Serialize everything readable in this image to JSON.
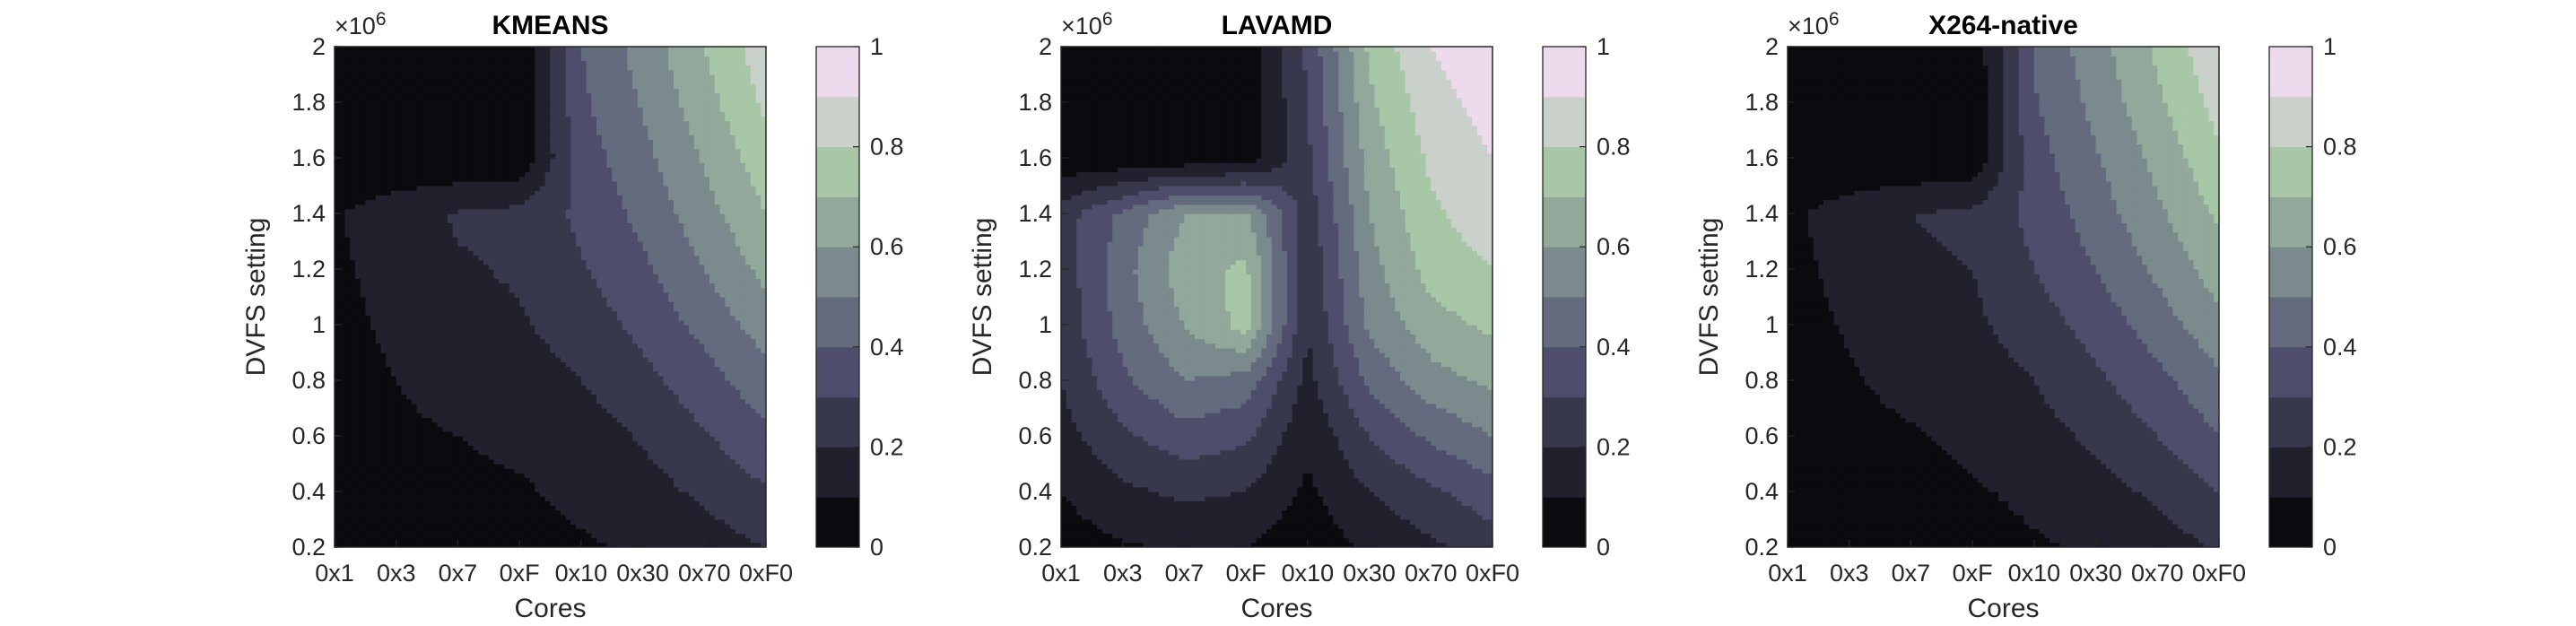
{
  "chart_data": [
    {
      "type": "contour",
      "title": "KMEANS",
      "xlabel": "Cores",
      "ylabel": "DVFS setting",
      "x_categories": [
        "0x1",
        "0x3",
        "0x7",
        "0xF",
        "0x10",
        "0x30",
        "0x70",
        "0xF0"
      ],
      "y": [
        200000,
        400000,
        600000,
        800000,
        1000000,
        1200000,
        1400000,
        1600000,
        1800000,
        2000000
      ],
      "y_tick_labels": [
        "0.2",
        "0.4",
        "0.6",
        "0.8",
        "1",
        "1.2",
        "1.4",
        "1.6",
        "1.8",
        "2"
      ],
      "y_multiplier": "×10",
      "y_multiplier_exp": "6",
      "ylim": [
        200000,
        2000000
      ],
      "colorbar": {
        "range": [
          0,
          1
        ],
        "ticks": [
          "0",
          "0.2",
          "0.4",
          "0.6",
          "0.8",
          "1"
        ]
      },
      "z": [
        [
          0.03,
          0.05,
          0.07,
          0.07,
          0.09,
          0.11,
          0.15,
          0.2
        ],
        [
          0.04,
          0.06,
          0.08,
          0.09,
          0.12,
          0.16,
          0.22,
          0.29
        ],
        [
          0.05,
          0.08,
          0.1,
          0.12,
          0.15,
          0.21,
          0.29,
          0.38
        ],
        [
          0.06,
          0.1,
          0.14,
          0.16,
          0.2,
          0.27,
          0.36,
          0.46
        ],
        [
          0.07,
          0.12,
          0.17,
          0.19,
          0.24,
          0.33,
          0.43,
          0.55
        ],
        [
          0.08,
          0.14,
          0.19,
          0.21,
          0.29,
          0.38,
          0.5,
          0.63
        ],
        [
          0.09,
          0.16,
          0.21,
          0.23,
          0.32,
          0.43,
          0.56,
          0.7
        ],
        [
          0.01,
          0.01,
          0.01,
          0.02,
          0.35,
          0.47,
          0.61,
          0.76
        ],
        [
          0.01,
          0.01,
          0.01,
          0.02,
          0.38,
          0.51,
          0.66,
          0.82
        ],
        [
          0.01,
          0.01,
          0.01,
          0.02,
          0.4,
          0.54,
          0.7,
          0.86
        ]
      ]
    },
    {
      "type": "contour",
      "title": "LAVAMD",
      "xlabel": "Cores",
      "ylabel": "DVFS setting",
      "x_categories": [
        "0x1",
        "0x3",
        "0x7",
        "0xF",
        "0x10",
        "0x30",
        "0x70",
        "0xF0"
      ],
      "y": [
        200000,
        400000,
        600000,
        800000,
        1000000,
        1200000,
        1400000,
        1600000,
        1800000,
        2000000
      ],
      "y_tick_labels": [
        "0.2",
        "0.4",
        "0.6",
        "0.8",
        "1",
        "1.2",
        "1.4",
        "1.6",
        "1.8",
        "2"
      ],
      "y_multiplier": "×10",
      "y_multiplier_exp": "6",
      "ylim": [
        200000,
        2000000
      ],
      "colorbar": {
        "range": [
          0,
          1
        ],
        "ticks": [
          "0",
          "0.2",
          "0.4",
          "0.6",
          "0.8",
          "1"
        ]
      },
      "z": [
        [
          0.05,
          0.09,
          0.11,
          0.1,
          0.03,
          0.12,
          0.18,
          0.25
        ],
        [
          0.1,
          0.18,
          0.22,
          0.2,
          0.08,
          0.2,
          0.28,
          0.36
        ],
        [
          0.16,
          0.28,
          0.36,
          0.32,
          0.12,
          0.3,
          0.42,
          0.5
        ],
        [
          0.2,
          0.38,
          0.5,
          0.46,
          0.17,
          0.42,
          0.56,
          0.62
        ],
        [
          0.23,
          0.44,
          0.6,
          0.74,
          0.2,
          0.52,
          0.66,
          0.72
        ],
        [
          0.24,
          0.46,
          0.66,
          0.72,
          0.22,
          0.56,
          0.74,
          0.8
        ],
        [
          0.25,
          0.42,
          0.6,
          0.62,
          0.24,
          0.6,
          0.78,
          0.86
        ],
        [
          0.02,
          0.02,
          0.03,
          0.03,
          0.28,
          0.64,
          0.82,
          0.9
        ],
        [
          0.02,
          0.02,
          0.03,
          0.03,
          0.3,
          0.68,
          0.86,
          0.94
        ],
        [
          0.02,
          0.02,
          0.03,
          0.03,
          0.32,
          0.72,
          0.9,
          0.98
        ]
      ]
    },
    {
      "type": "contour",
      "title": "X264-native",
      "xlabel": "Cores",
      "ylabel": "DVFS setting",
      "x_categories": [
        "0x1",
        "0x3",
        "0x7",
        "0xF",
        "0x10",
        "0x30",
        "0x70",
        "0xF0"
      ],
      "y": [
        200000,
        400000,
        600000,
        800000,
        1000000,
        1200000,
        1400000,
        1600000,
        1800000,
        2000000
      ],
      "y_tick_labels": [
        "0.2",
        "0.4",
        "0.6",
        "0.8",
        "1",
        "1.2",
        "1.4",
        "1.6",
        "1.8",
        "2"
      ],
      "y_multiplier": "×10",
      "y_multiplier_exp": "6",
      "ylim": [
        200000,
        2000000
      ],
      "colorbar": {
        "range": [
          0,
          1
        ],
        "ticks": [
          "0",
          "0.2",
          "0.4",
          "0.6",
          "0.8",
          "1"
        ]
      },
      "z": [
        [
          0.02,
          0.03,
          0.05,
          0.06,
          0.09,
          0.11,
          0.15,
          0.21
        ],
        [
          0.03,
          0.05,
          0.07,
          0.09,
          0.12,
          0.16,
          0.22,
          0.3
        ],
        [
          0.04,
          0.07,
          0.09,
          0.12,
          0.16,
          0.22,
          0.3,
          0.4
        ],
        [
          0.05,
          0.09,
          0.13,
          0.15,
          0.2,
          0.28,
          0.37,
          0.48
        ],
        [
          0.06,
          0.11,
          0.16,
          0.18,
          0.25,
          0.34,
          0.45,
          0.57
        ],
        [
          0.07,
          0.13,
          0.18,
          0.2,
          0.3,
          0.4,
          0.52,
          0.65
        ],
        [
          0.08,
          0.15,
          0.2,
          0.22,
          0.33,
          0.45,
          0.58,
          0.72
        ],
        [
          0.01,
          0.01,
          0.01,
          0.02,
          0.36,
          0.49,
          0.63,
          0.78
        ],
        [
          0.01,
          0.01,
          0.01,
          0.02,
          0.39,
          0.53,
          0.68,
          0.84
        ],
        [
          0.01,
          0.01,
          0.01,
          0.02,
          0.41,
          0.56,
          0.72,
          0.88
        ]
      ]
    }
  ]
}
